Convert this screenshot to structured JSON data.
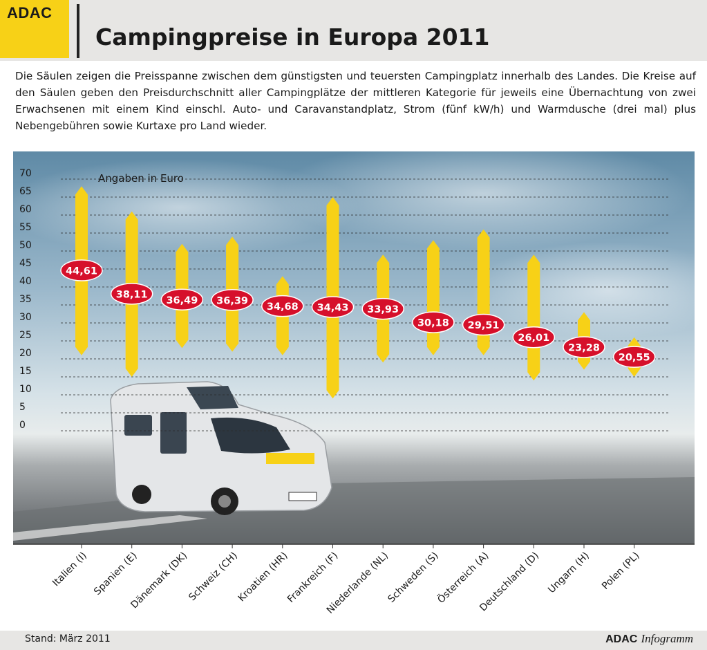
{
  "header": {
    "logo": "ADAC",
    "title": "Campingpreise in Europa 2011"
  },
  "description": "Die Säulen zeigen die Preisspanne zwischen dem günstigsten und teuersten Campingplatz innerhalb des Landes. Die Kreise auf den Säulen geben den Preisdurchschnitt aller Campingplätze der mittleren Kategorie für jeweils eine Übernachtung von zwei Erwachsenen mit einem Kind einschl. Auto- und Caravanstandplatz, Strom (fünf kW/h) und Warmdusche (drei mal) plus Nebengebühren sowie Kurtaxe pro Land wieder.",
  "chart_data": {
    "type": "bar",
    "subtype": "range-bar with average markers",
    "unit_label": "Angaben in Euro",
    "ylim": [
      0,
      70
    ],
    "yticks": [
      0,
      5,
      10,
      15,
      20,
      25,
      30,
      35,
      40,
      45,
      50,
      55,
      60,
      65,
      70
    ],
    "grid": true,
    "colors": {
      "bar": "#f7d117",
      "marker": "#d6102b",
      "marker_text": "#ffffff"
    },
    "categories": [
      "Italien (I)",
      "Spanien (E)",
      "Dänemark (DK)",
      "Schweiz (CH)",
      "Kroatien (HR)",
      "Frankreich (F)",
      "Niederlande (NL)",
      "Schweden (S)",
      "Österreich (A)",
      "Deutschland (D)",
      "Ungarn (H)",
      "Polen (PL)"
    ],
    "min": [
      21,
      15,
      23,
      22,
      21,
      9,
      19,
      21,
      21,
      14,
      17,
      15
    ],
    "max": [
      68,
      61,
      52,
      54,
      43,
      65,
      49,
      53,
      56,
      49,
      33,
      26
    ],
    "average": [
      44.61,
      38.11,
      36.49,
      36.39,
      34.68,
      34.43,
      33.93,
      30.18,
      29.51,
      26.01,
      23.28,
      20.55
    ],
    "average_labels": [
      "44,61",
      "38,11",
      "36,49",
      "36,39",
      "34,68",
      "34,43",
      "33,93",
      "30,18",
      "29,51",
      "26,01",
      "23,28",
      "20,55"
    ]
  },
  "footer": {
    "stand": "Stand: März 2011",
    "brand": "ADAC",
    "brand_suffix": "Infogramm"
  }
}
